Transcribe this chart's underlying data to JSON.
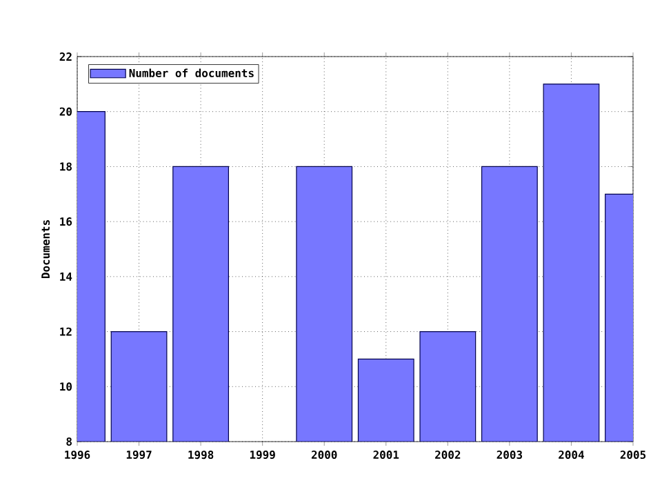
{
  "chart_data": {
    "type": "bar",
    "ylabel": "Documents",
    "x": [
      1996,
      1997,
      1998,
      1999,
      2000,
      2001,
      2002,
      2003,
      2004,
      2005
    ],
    "series": [
      {
        "name": "Number of documents",
        "color": "#7777ff",
        "values": [
          20,
          12,
          18,
          null,
          18,
          11,
          12,
          18,
          21,
          17
        ]
      }
    ],
    "xlim": [
      1996,
      2005
    ],
    "xticks": [
      1996,
      1997,
      1998,
      1999,
      2000,
      2001,
      2002,
      2003,
      2004,
      2005
    ],
    "ylim": [
      8,
      22
    ],
    "yticks": [
      8,
      10,
      12,
      14,
      16,
      18,
      20,
      22
    ],
    "grid": true,
    "legend": "top left"
  }
}
